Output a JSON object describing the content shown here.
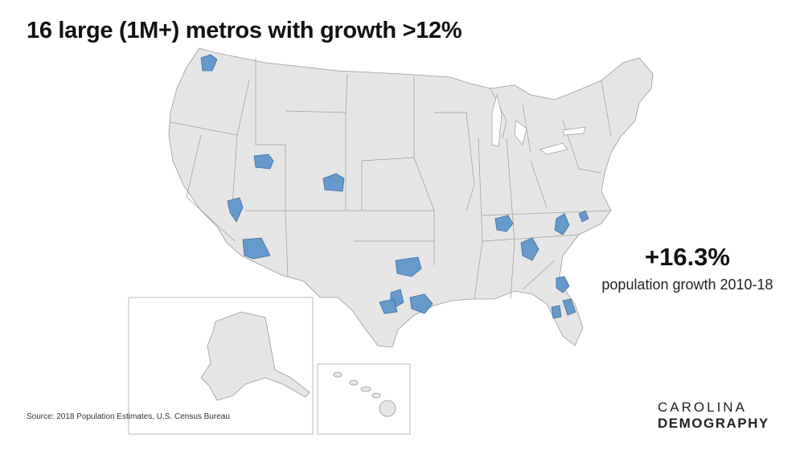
{
  "title": "16 large (1M+) metros with growth >12%",
  "stat": {
    "value": "+16.3%",
    "label": "population growth 2010-18"
  },
  "source": "Source: 2018 Population Estimates, U.S. Census Bureau",
  "brand": {
    "line1": "CAROLINA",
    "line2": "DEMOGRAPHY"
  },
  "colors": {
    "land": "#e6e6e6",
    "border": "#9a9a9a",
    "metro": "#6699cc",
    "inset_frame": "#bbbbbb"
  },
  "map_layers": [
    "contiguous-us",
    "alaska-inset",
    "hawaii-inset"
  ],
  "highlighted_metros": [
    {
      "name": "Seattle"
    },
    {
      "name": "Salt Lake City"
    },
    {
      "name": "Las Vegas"
    },
    {
      "name": "Phoenix"
    },
    {
      "name": "Denver"
    },
    {
      "name": "Dallas-Fort Worth"
    },
    {
      "name": "Austin"
    },
    {
      "name": "San Antonio"
    },
    {
      "name": "Houston"
    },
    {
      "name": "Nashville"
    },
    {
      "name": "Atlanta"
    },
    {
      "name": "Charlotte"
    },
    {
      "name": "Raleigh"
    },
    {
      "name": "Jacksonville"
    },
    {
      "name": "Orlando"
    },
    {
      "name": "Tampa"
    }
  ]
}
